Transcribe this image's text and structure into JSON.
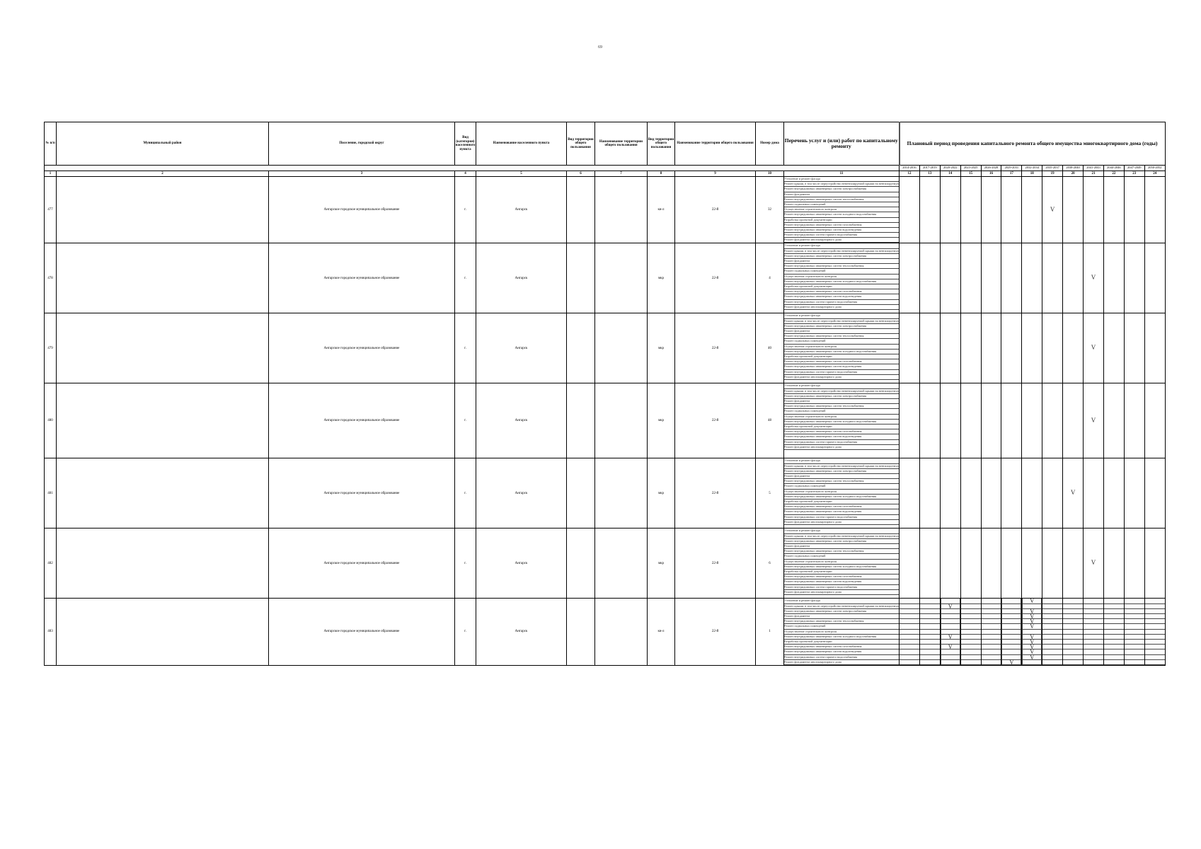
{
  "page_number": "69",
  "headers": {
    "num": "№ п/п",
    "district": "Муниципальный район",
    "settlement": "Поселение, городской округ",
    "locality_type": "Вид (категория) населенного пункта",
    "locality_name": "Наименование населенного пункта",
    "territory_type_1": "Вид территории общего пользования",
    "territory_name_1": "Наименование территории общего пользования",
    "territory_type_2": "Вид территории общего пользования",
    "territory_name_2": "Наименование территории общего пользования",
    "house": "Номер дома",
    "works": "Перечень услуг и (или) работ по капитальному ремонту",
    "period": "Плановый период проведения капитального ремонта общего имущества многоквартирного дома (годы)"
  },
  "years": [
    "2014-2016",
    "2017-2019",
    "2020-2022",
    "2023-2025",
    "2026-2028",
    "2029-2031",
    "2032-2034",
    "2035-2037",
    "2038-2040",
    "2041-2043",
    "2044-2046",
    "2047-2049",
    "2050-2052"
  ],
  "column_numbers": [
    "1",
    "2",
    "3",
    "4",
    "5",
    "6",
    "7",
    "8",
    "9",
    "10",
    "11",
    "12",
    "13",
    "14",
    "15",
    "16",
    "17",
    "18",
    "19",
    "20",
    "21",
    "22",
    "23",
    "24"
  ],
  "works_list": [
    "Утепление и ремонт фасада",
    "Ремонт крыши, в том числе переустройство невентилируемой крыши на вентилируемую",
    "Ремонт внутридомовых инженерных систем электроснабжения",
    "Ремонт фундамента",
    "Ремонт внутридомовых инженерных систем теплоснабжения",
    "Ремонт подвальных помещений",
    "Осуществление строительного контроля",
    "Ремонт внутридомовых инженерных систем холодного водоснабжения",
    "Разработка проектной документации",
    "Ремонт внутридомовых инженерных систем газоснабжения",
    "Ремонт внутридомовых инженерных систем водоотведения",
    "Ремонт внутридомовых систем горячего водоснабжения",
    "Ремонт фундамента многоквартирного дома"
  ],
  "mark": "V",
  "rows": [
    {
      "num": "477",
      "district": "",
      "settlement": "Ангарское городское муниципальное образование",
      "locality_type": "г.",
      "locality_name": "Ангарск",
      "territory_type_1": "",
      "territory_name_1": "",
      "territory_type_2": "кв-л",
      "territory_name_2": "22-й",
      "house": "32",
      "works_count": 13,
      "period_index": 7
    },
    {
      "num": "478",
      "district": "",
      "settlement": "Ангарское городское муниципальное образование",
      "locality_type": "г.",
      "locality_name": "Ангарск",
      "territory_type_1": "",
      "territory_name_1": "",
      "territory_type_2": "мкр",
      "territory_name_2": "22-й",
      "house": "4",
      "works_count": 13,
      "period_index": 9
    },
    {
      "num": "479",
      "district": "",
      "settlement": "Ангарское городское муниципальное образование",
      "locality_type": "г.",
      "locality_name": "Ангарск",
      "territory_type_1": "",
      "territory_name_1": "",
      "territory_type_2": "мкр",
      "territory_name_2": "22-й",
      "house": "40",
      "works_count": 13,
      "period_index": 9
    },
    {
      "num": "480",
      "district": "",
      "settlement": "Ангарское городское муниципальное образование",
      "locality_type": "г.",
      "locality_name": "Ангарск",
      "territory_type_1": "",
      "territory_name_1": "",
      "territory_type_2": "мкр",
      "territory_name_2": "22-й",
      "house": "48",
      "works_count": 13,
      "period_index": 9
    },
    {
      "num": "481",
      "district": "",
      "settlement": "Ангарское городское муниципальное образование",
      "locality_type": "г.",
      "locality_name": "Ангарск",
      "territory_type_1": "",
      "territory_name_1": "",
      "territory_type_2": "мкр",
      "territory_name_2": "22-й",
      "house": "5",
      "works_count": 13,
      "period_index": 8
    },
    {
      "num": "482",
      "district": "",
      "settlement": "Ангарское городское муниципальное образование",
      "locality_type": "г.",
      "locality_name": "Ангарск",
      "territory_type_1": "",
      "territory_name_1": "",
      "territory_type_2": "мкр",
      "territory_name_2": "22-й",
      "house": "6",
      "works_count": 13,
      "period_index": 9
    },
    {
      "num": "483",
      "district": "",
      "settlement": "Ангарское городское муниципальное образование",
      "locality_type": "г.",
      "locality_name": "Ангарск",
      "territory_type_1": "",
      "territory_name_1": "",
      "territory_type_2": "кв-л",
      "territory_name_2": "22-й",
      "house": "1",
      "works_count": 13,
      "per_work_marks": [
        [
          6
        ],
        [
          2
        ],
        [
          6
        ],
        [
          6
        ],
        [
          6
        ],
        [
          6
        ],
        [],
        [
          2,
          6
        ],
        [
          6
        ],
        [
          2,
          6
        ],
        [
          6
        ],
        [
          6
        ],
        [
          5
        ]
      ]
    }
  ]
}
